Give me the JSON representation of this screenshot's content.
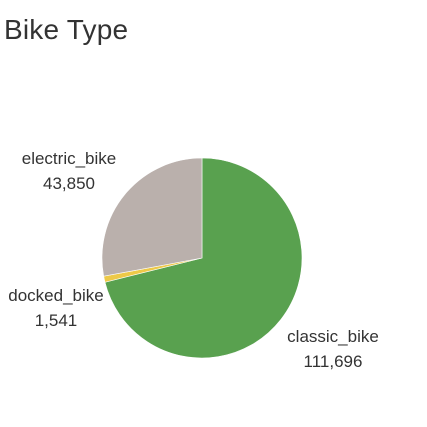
{
  "title": "Bike Type",
  "chart_data": {
    "type": "pie",
    "title": "Bike Type",
    "slices": [
      {
        "label": "classic_bike",
        "value": 111696,
        "value_text": "111,696",
        "color": "#59a14f"
      },
      {
        "label": "docked_bike",
        "value": 1541,
        "value_text": "1,541",
        "color": "#edc948"
      },
      {
        "label": "electric_bike",
        "value": 43850,
        "value_text": "43,850",
        "color": "#bab0ac"
      }
    ],
    "start_angle": "12 o'clock",
    "direction": "clockwise",
    "legend": "none",
    "labels": "outside slices"
  }
}
